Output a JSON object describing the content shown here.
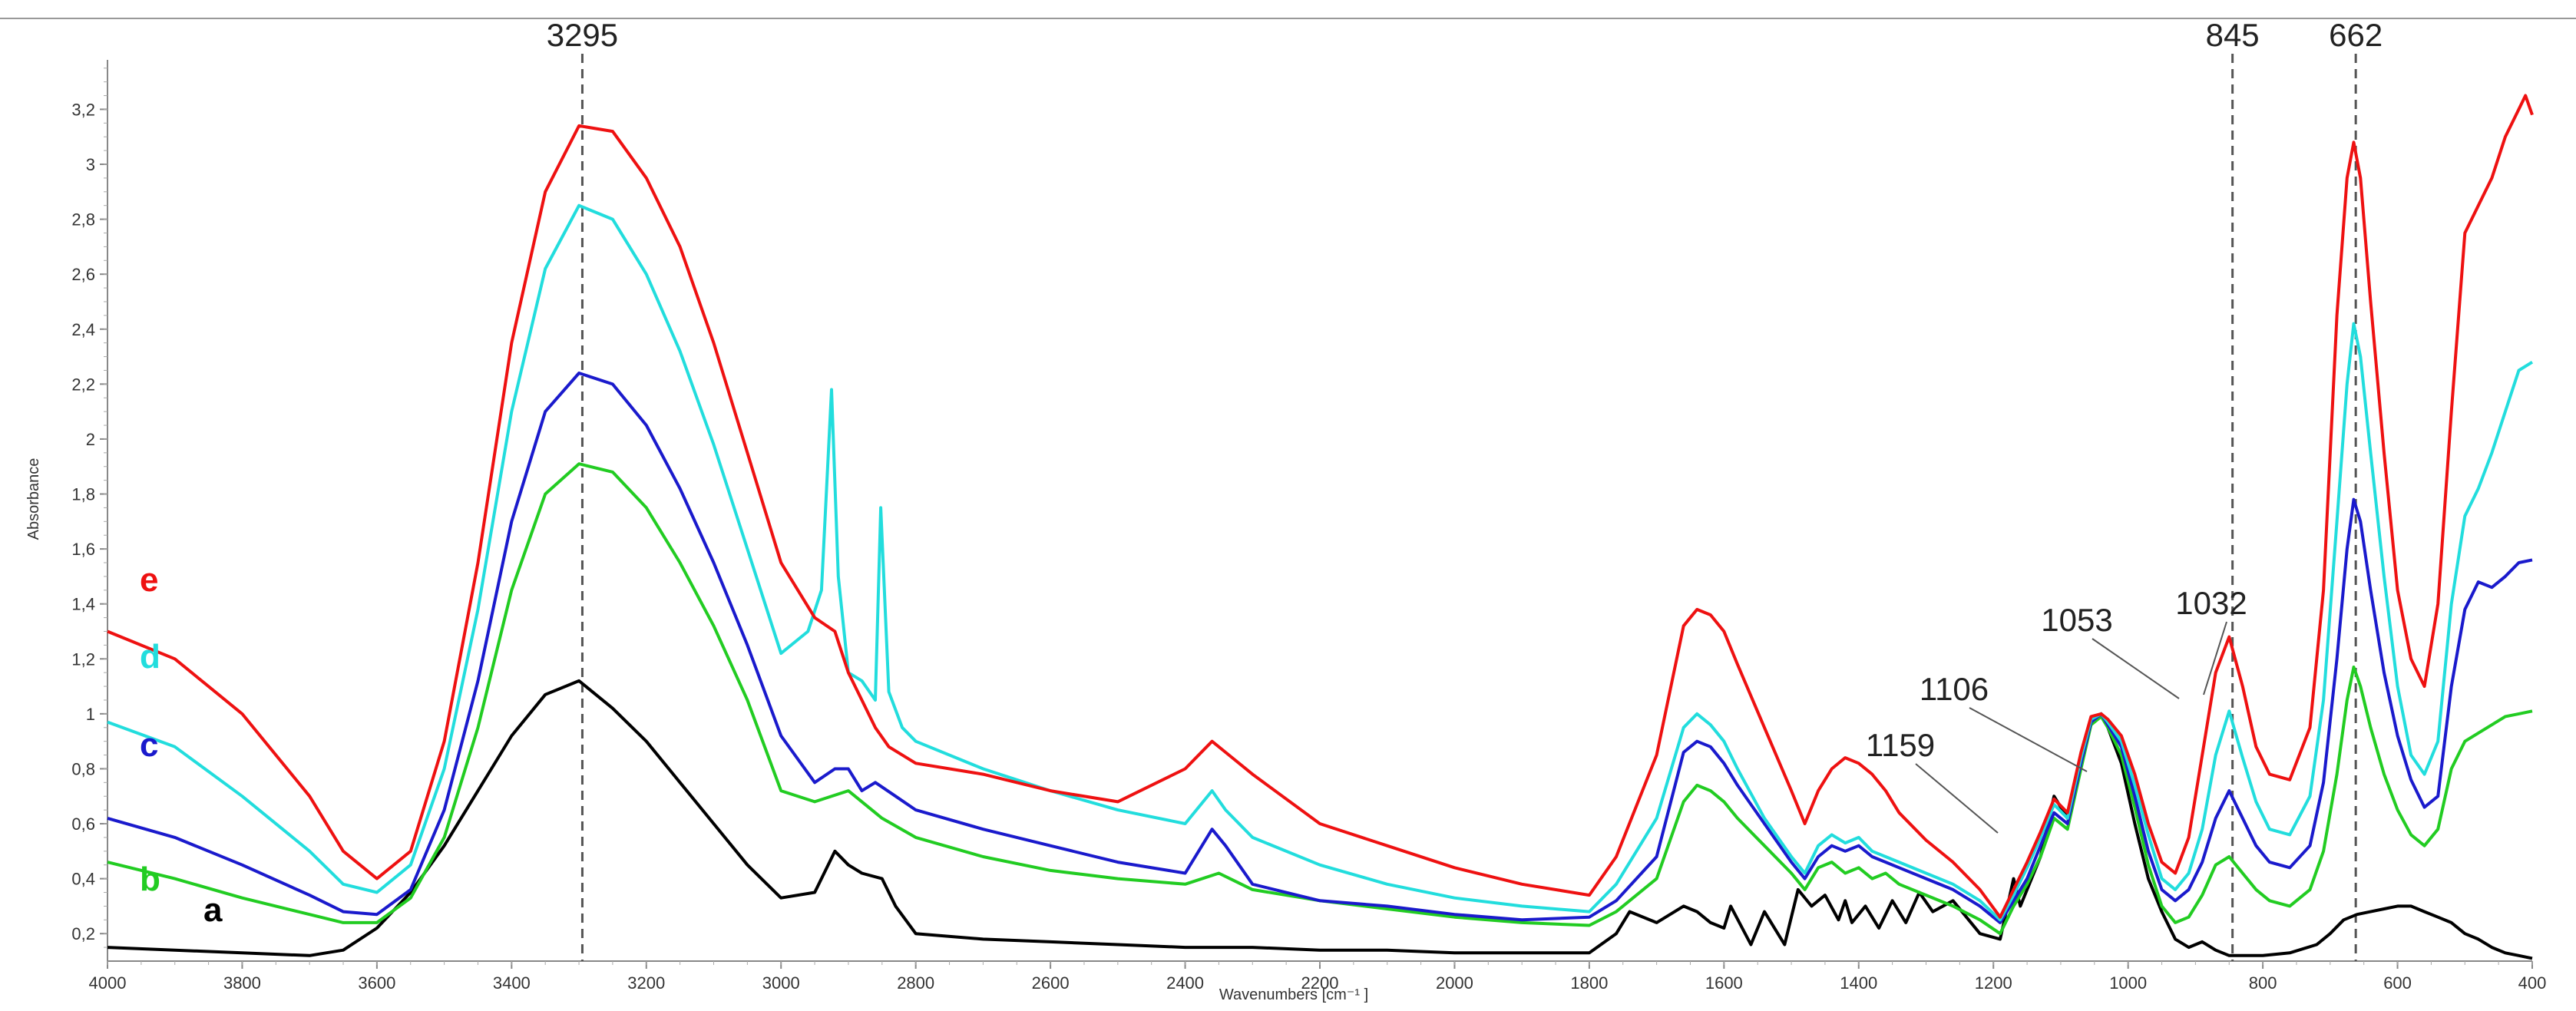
{
  "chart_data": {
    "type": "line",
    "title": "",
    "xlabel": "Wavenumbers [cm⁻¹ ]",
    "ylabel": "Absorbance",
    "xlim": [
      4000,
      400
    ],
    "ylim": [
      0.1,
      3.38
    ],
    "x_ticks": [
      "4000",
      "3800",
      "3600",
      "3400",
      "3200",
      "3000",
      "2800",
      "2600",
      "2400",
      "2200",
      "2000",
      "1800",
      "1600",
      "1400",
      "1200",
      "1000",
      "800",
      "600",
      "400"
    ],
    "y_ticks": [
      "0,2",
      "0,4",
      "0,6",
      "0,8",
      "1",
      "1,2",
      "1,4",
      "1,6",
      "1,8",
      "2",
      "2,2",
      "2,4",
      "2,6",
      "2,8",
      "3",
      "3,2"
    ],
    "reference_lines": [
      {
        "x": 3295,
        "label": "3295"
      },
      {
        "x": 845,
        "label": "845"
      },
      {
        "x": 662,
        "label": "662"
      }
    ],
    "annotations": [
      {
        "label": "1159",
        "x": 1159
      },
      {
        "label": "1106",
        "x": 1106
      },
      {
        "label": "1053",
        "x": 1053
      },
      {
        "label": "1032",
        "x": 1032
      }
    ],
    "series": [
      {
        "name": "a",
        "color": "#000000",
        "x": [
          4000,
          3900,
          3800,
          3700,
          3650,
          3600,
          3550,
          3500,
          3450,
          3400,
          3350,
          3300,
          3250,
          3200,
          3150,
          3100,
          3050,
          3000,
          2950,
          2920,
          2900,
          2880,
          2850,
          2830,
          2800,
          2700,
          2600,
          2500,
          2400,
          2300,
          2200,
          2100,
          2000,
          1900,
          1800,
          1760,
          1740,
          1700,
          1660,
          1640,
          1620,
          1600,
          1590,
          1560,
          1540,
          1520,
          1510,
          1490,
          1470,
          1450,
          1430,
          1420,
          1410,
          1390,
          1370,
          1350,
          1330,
          1310,
          1290,
          1260,
          1220,
          1190,
          1170,
          1160,
          1150,
          1130,
          1110,
          1090,
          1070,
          1055,
          1040,
          1030,
          1010,
          990,
          970,
          950,
          930,
          910,
          890,
          870,
          850,
          820,
          800,
          760,
          720,
          700,
          680,
          660,
          640,
          620,
          600,
          580,
          560,
          540,
          520,
          500,
          480,
          460,
          440,
          420,
          400
        ],
        "y": [
          0.15,
          0.14,
          0.13,
          0.12,
          0.14,
          0.22,
          0.35,
          0.52,
          0.72,
          0.92,
          1.07,
          1.12,
          1.02,
          0.9,
          0.75,
          0.6,
          0.45,
          0.33,
          0.35,
          0.5,
          0.45,
          0.42,
          0.4,
          0.3,
          0.2,
          0.18,
          0.17,
          0.16,
          0.15,
          0.15,
          0.14,
          0.14,
          0.13,
          0.13,
          0.13,
          0.2,
          0.28,
          0.24,
          0.3,
          0.28,
          0.24,
          0.22,
          0.3,
          0.16,
          0.28,
          0.2,
          0.16,
          0.36,
          0.3,
          0.34,
          0.25,
          0.32,
          0.24,
          0.3,
          0.22,
          0.32,
          0.24,
          0.35,
          0.28,
          0.32,
          0.2,
          0.18,
          0.4,
          0.3,
          0.36,
          0.48,
          0.7,
          0.62,
          0.85,
          0.98,
          1.0,
          0.95,
          0.82,
          0.6,
          0.4,
          0.28,
          0.18,
          0.15,
          0.17,
          0.14,
          0.12,
          0.12,
          0.12,
          0.13,
          0.16,
          0.2,
          0.25,
          0.27,
          0.28,
          0.29,
          0.3,
          0.3,
          0.28,
          0.26,
          0.24,
          0.2,
          0.18,
          0.15,
          0.13,
          0.12,
          0.11
        ]
      },
      {
        "name": "b",
        "color": "#22cc22",
        "x": [
          4000,
          3900,
          3800,
          3700,
          3650,
          3600,
          3550,
          3500,
          3450,
          3400,
          3350,
          3300,
          3250,
          3200,
          3150,
          3100,
          3050,
          3000,
          2950,
          2900,
          2850,
          2800,
          2700,
          2600,
          2500,
          2400,
          2350,
          2300,
          2200,
          2100,
          2000,
          1900,
          1800,
          1760,
          1700,
          1660,
          1640,
          1620,
          1600,
          1580,
          1540,
          1500,
          1480,
          1460,
          1440,
          1420,
          1400,
          1380,
          1360,
          1340,
          1300,
          1260,
          1220,
          1190,
          1170,
          1150,
          1130,
          1110,
          1090,
          1070,
          1055,
          1040,
          1030,
          1010,
          990,
          970,
          950,
          930,
          910,
          890,
          870,
          850,
          830,
          810,
          790,
          760,
          730,
          710,
          690,
          675,
          665,
          655,
          640,
          620,
          600,
          580,
          560,
          540,
          520,
          500,
          480,
          460,
          440,
          420,
          400
        ],
        "y": [
          0.46,
          0.4,
          0.33,
          0.27,
          0.24,
          0.24,
          0.33,
          0.55,
          0.95,
          1.45,
          1.8,
          1.91,
          1.88,
          1.75,
          1.55,
          1.32,
          1.05,
          0.72,
          0.68,
          0.72,
          0.62,
          0.55,
          0.48,
          0.43,
          0.4,
          0.38,
          0.42,
          0.36,
          0.32,
          0.29,
          0.26,
          0.24,
          0.23,
          0.28,
          0.4,
          0.68,
          0.74,
          0.72,
          0.68,
          0.62,
          0.52,
          0.42,
          0.36,
          0.44,
          0.46,
          0.42,
          0.44,
          0.4,
          0.42,
          0.38,
          0.34,
          0.3,
          0.25,
          0.2,
          0.3,
          0.38,
          0.48,
          0.62,
          0.58,
          0.8,
          0.96,
          0.99,
          0.95,
          0.85,
          0.66,
          0.45,
          0.3,
          0.24,
          0.26,
          0.34,
          0.45,
          0.48,
          0.42,
          0.36,
          0.32,
          0.3,
          0.36,
          0.5,
          0.78,
          1.05,
          1.17,
          1.1,
          0.95,
          0.78,
          0.65,
          0.56,
          0.52,
          0.58,
          0.8,
          0.9,
          0.93,
          0.96,
          0.99,
          1.0,
          1.01
        ]
      },
      {
        "name": "c",
        "color": "#1a1acc",
        "x": [
          4000,
          3900,
          3800,
          3700,
          3650,
          3600,
          3550,
          3500,
          3450,
          3400,
          3350,
          3300,
          3250,
          3200,
          3150,
          3100,
          3050,
          3000,
          2950,
          2920,
          2900,
          2880,
          2860,
          2830,
          2800,
          2700,
          2600,
          2500,
          2400,
          2360,
          2340,
          2300,
          2200,
          2100,
          2000,
          1900,
          1800,
          1760,
          1700,
          1660,
          1640,
          1620,
          1600,
          1580,
          1540,
          1500,
          1480,
          1460,
          1440,
          1420,
          1400,
          1380,
          1360,
          1340,
          1300,
          1260,
          1220,
          1190,
          1170,
          1150,
          1130,
          1110,
          1090,
          1070,
          1055,
          1040,
          1030,
          1010,
          990,
          970,
          950,
          930,
          910,
          890,
          870,
          850,
          830,
          810,
          790,
          760,
          730,
          710,
          690,
          675,
          665,
          655,
          640,
          620,
          600,
          580,
          560,
          540,
          520,
          500,
          480,
          460,
          440,
          420,
          400
        ],
        "y": [
          0.62,
          0.55,
          0.45,
          0.34,
          0.28,
          0.27,
          0.36,
          0.65,
          1.12,
          1.7,
          2.1,
          2.24,
          2.2,
          2.05,
          1.82,
          1.55,
          1.25,
          0.92,
          0.75,
          0.8,
          0.8,
          0.72,
          0.75,
          0.7,
          0.65,
          0.58,
          0.52,
          0.46,
          0.42,
          0.58,
          0.52,
          0.38,
          0.32,
          0.3,
          0.27,
          0.25,
          0.26,
          0.32,
          0.48,
          0.86,
          0.9,
          0.88,
          0.82,
          0.74,
          0.6,
          0.46,
          0.4,
          0.48,
          0.52,
          0.5,
          0.52,
          0.48,
          0.46,
          0.44,
          0.4,
          0.36,
          0.3,
          0.24,
          0.32,
          0.4,
          0.52,
          0.64,
          0.6,
          0.82,
          0.97,
          1.0,
          0.96,
          0.88,
          0.7,
          0.5,
          0.36,
          0.32,
          0.36,
          0.46,
          0.62,
          0.72,
          0.62,
          0.52,
          0.46,
          0.44,
          0.52,
          0.75,
          1.2,
          1.6,
          1.78,
          1.7,
          1.45,
          1.15,
          0.92,
          0.76,
          0.66,
          0.7,
          1.1,
          1.38,
          1.48,
          1.46,
          1.5,
          1.55,
          1.56
        ]
      },
      {
        "name": "d",
        "color": "#22dddd",
        "x": [
          4000,
          3900,
          3800,
          3700,
          3650,
          3600,
          3550,
          3500,
          3450,
          3400,
          3350,
          3300,
          3250,
          3200,
          3150,
          3100,
          3050,
          3000,
          2960,
          2940,
          2925,
          2915,
          2900,
          2880,
          2860,
          2852,
          2840,
          2820,
          2800,
          2700,
          2600,
          2500,
          2400,
          2360,
          2340,
          2300,
          2200,
          2100,
          2000,
          1900,
          1800,
          1760,
          1700,
          1660,
          1640,
          1620,
          1600,
          1580,
          1540,
          1500,
          1480,
          1460,
          1440,
          1420,
          1400,
          1380,
          1360,
          1340,
          1300,
          1260,
          1220,
          1190,
          1170,
          1150,
          1130,
          1110,
          1090,
          1070,
          1055,
          1040,
          1030,
          1010,
          990,
          970,
          950,
          930,
          910,
          890,
          870,
          850,
          830,
          810,
          790,
          760,
          730,
          710,
          690,
          675,
          665,
          655,
          640,
          620,
          600,
          580,
          560,
          540,
          520,
          500,
          480,
          460,
          440,
          420,
          400
        ],
        "y": [
          0.97,
          0.88,
          0.7,
          0.5,
          0.38,
          0.35,
          0.45,
          0.8,
          1.38,
          2.1,
          2.62,
          2.85,
          2.8,
          2.6,
          2.32,
          1.98,
          1.6,
          1.22,
          1.3,
          1.45,
          2.18,
          1.5,
          1.15,
          1.12,
          1.05,
          1.75,
          1.08,
          0.95,
          0.9,
          0.8,
          0.72,
          0.65,
          0.6,
          0.72,
          0.65,
          0.55,
          0.45,
          0.38,
          0.33,
          0.3,
          0.28,
          0.38,
          0.62,
          0.95,
          1.0,
          0.96,
          0.9,
          0.8,
          0.62,
          0.48,
          0.42,
          0.52,
          0.56,
          0.53,
          0.55,
          0.5,
          0.48,
          0.46,
          0.42,
          0.38,
          0.32,
          0.25,
          0.34,
          0.44,
          0.55,
          0.67,
          0.62,
          0.84,
          0.98,
          1.0,
          0.97,
          0.9,
          0.74,
          0.56,
          0.4,
          0.36,
          0.42,
          0.58,
          0.85,
          1.01,
          0.84,
          0.68,
          0.58,
          0.56,
          0.7,
          1.05,
          1.7,
          2.2,
          2.42,
          2.3,
          1.95,
          1.5,
          1.1,
          0.85,
          0.78,
          0.9,
          1.4,
          1.72,
          1.82,
          1.95,
          2.1,
          2.25,
          2.28
        ]
      },
      {
        "name": "e",
        "color": "#ee1111",
        "x": [
          4000,
          3900,
          3800,
          3700,
          3650,
          3600,
          3550,
          3500,
          3450,
          3400,
          3350,
          3300,
          3250,
          3200,
          3150,
          3100,
          3050,
          3000,
          2950,
          2920,
          2900,
          2880,
          2860,
          2840,
          2800,
          2700,
          2600,
          2500,
          2400,
          2360,
          2340,
          2300,
          2200,
          2100,
          2000,
          1900,
          1800,
          1760,
          1700,
          1660,
          1640,
          1620,
          1600,
          1580,
          1540,
          1500,
          1480,
          1460,
          1440,
          1420,
          1400,
          1380,
          1360,
          1340,
          1300,
          1260,
          1220,
          1190,
          1170,
          1150,
          1130,
          1110,
          1090,
          1070,
          1055,
          1040,
          1030,
          1010,
          990,
          970,
          950,
          930,
          910,
          890,
          870,
          850,
          830,
          810,
          790,
          760,
          730,
          710,
          690,
          675,
          665,
          655,
          640,
          620,
          600,
          580,
          560,
          540,
          520,
          500,
          480,
          460,
          440,
          420,
          410,
          400
        ],
        "y": [
          1.3,
          1.2,
          1.0,
          0.7,
          0.5,
          0.4,
          0.5,
          0.9,
          1.55,
          2.35,
          2.9,
          3.14,
          3.12,
          2.95,
          2.7,
          2.35,
          1.95,
          1.55,
          1.35,
          1.3,
          1.15,
          1.05,
          0.95,
          0.88,
          0.82,
          0.78,
          0.72,
          0.68,
          0.8,
          0.9,
          0.86,
          0.78,
          0.6,
          0.52,
          0.44,
          0.38,
          0.34,
          0.48,
          0.85,
          1.32,
          1.38,
          1.36,
          1.3,
          1.18,
          0.95,
          0.72,
          0.6,
          0.72,
          0.8,
          0.84,
          0.82,
          0.78,
          0.72,
          0.64,
          0.54,
          0.46,
          0.36,
          0.26,
          0.36,
          0.46,
          0.57,
          0.69,
          0.64,
          0.86,
          0.99,
          1.0,
          0.98,
          0.92,
          0.78,
          0.6,
          0.46,
          0.42,
          0.55,
          0.85,
          1.15,
          1.28,
          1.1,
          0.88,
          0.78,
          0.76,
          0.95,
          1.45,
          2.45,
          2.95,
          3.08,
          2.95,
          2.5,
          1.95,
          1.45,
          1.2,
          1.1,
          1.4,
          2.1,
          2.75,
          2.85,
          2.95,
          3.1,
          3.2,
          3.25,
          3.18
        ]
      }
    ]
  }
}
